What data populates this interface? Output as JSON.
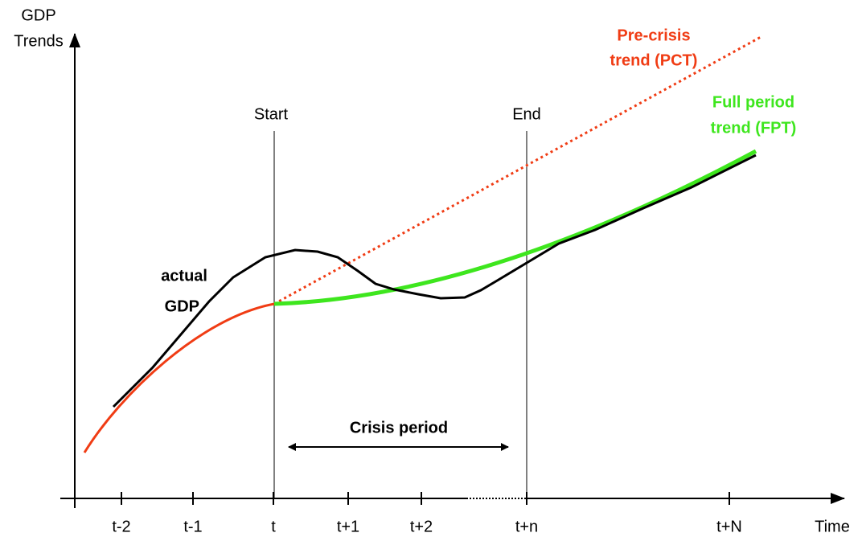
{
  "axes": {
    "y_label": [
      "GDP",
      "Trends"
    ],
    "x_label": "Time",
    "x_ticks": [
      "t-2",
      "t-1",
      "t",
      "t+1",
      "t+2",
      "t+n",
      "t+N"
    ]
  },
  "markers": {
    "start": "Start",
    "end": "End"
  },
  "annotations": {
    "actual_gdp": [
      "actual",
      "GDP"
    ],
    "pct": [
      "Pre-crisis",
      "trend (PCT)"
    ],
    "fpt": [
      "Full period",
      "trend (FPT)"
    ],
    "crisis": "Crisis period"
  }
}
